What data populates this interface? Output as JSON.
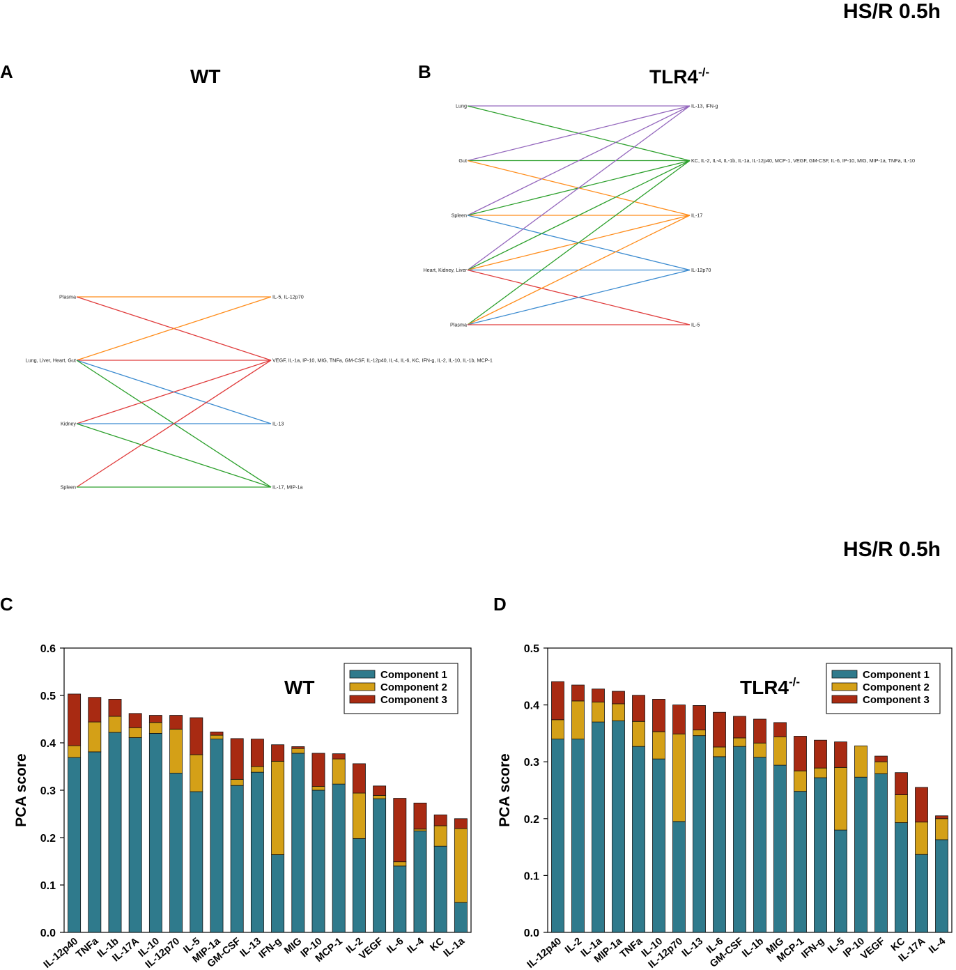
{
  "headers": {
    "top": "HS/R  0.5h",
    "bottom": "HS/R 0.5h"
  },
  "panels": {
    "a": {
      "letter": "A",
      "title": "WT"
    },
    "b": {
      "letter": "B",
      "title_main": "TLR4",
      "title_sup": "-/-"
    },
    "c": {
      "letter": "C"
    },
    "d": {
      "letter": "D"
    }
  },
  "colors": {
    "component1": "#2f7a8c",
    "component2": "#d4a017",
    "component3": "#a82a12",
    "net_orange": "#ff8c1a",
    "net_red": "#e03c3c",
    "net_blue": "#3b8bd0",
    "net_green": "#2ca02c",
    "net_purple": "#9467bd"
  },
  "chart_data": [
    {
      "type": "network",
      "panel": "A",
      "title": "WT",
      "left_nodes": [
        "Plasma",
        "Lung, Liver, Heart, Gut",
        "Kidney",
        "Spleen"
      ],
      "right_nodes": [
        "IL-5, IL-12p70",
        "VEGF, IL-1a, IP-10, MIG, TNFa, GM-CSF, IL-12p40, IL-4, IL-6, KC, IFN-g, IL-2, IL-10, IL-1b, MCP-1",
        "IL-13",
        "IL-17, MIP-1a"
      ],
      "edges": [
        {
          "from": 0,
          "to": 0,
          "color": "net_orange"
        },
        {
          "from": 0,
          "to": 1,
          "color": "net_red"
        },
        {
          "from": 1,
          "to": 0,
          "color": "net_orange"
        },
        {
          "from": 1,
          "to": 1,
          "color": "net_red"
        },
        {
          "from": 1,
          "to": 2,
          "color": "net_blue"
        },
        {
          "from": 1,
          "to": 3,
          "color": "net_green"
        },
        {
          "from": 2,
          "to": 1,
          "color": "net_red"
        },
        {
          "from": 2,
          "to": 2,
          "color": "net_blue"
        },
        {
          "from": 2,
          "to": 3,
          "color": "net_green"
        },
        {
          "from": 3,
          "to": 1,
          "color": "net_red"
        },
        {
          "from": 3,
          "to": 3,
          "color": "net_green"
        }
      ]
    },
    {
      "type": "network",
      "panel": "B",
      "title": "TLR4-/-",
      "left_nodes": [
        "Lung",
        "Gut",
        "Spleen",
        "Heart, Kidney, Liver",
        "Plasma"
      ],
      "right_nodes": [
        "IL-13, IFN-g",
        "KC, IL-2, IL-4, IL-1b, IL-1a, IL-12p40, MCP-1, VEGF, GM-CSF, IL-6, IP-10, MIG, MIP-1a, TNFa, IL-10",
        "IL-17",
        "IL-12p70",
        "IL-5"
      ],
      "edges": [
        {
          "from": 0,
          "to": 0,
          "color": "net_purple"
        },
        {
          "from": 0,
          "to": 1,
          "color": "net_green"
        },
        {
          "from": 1,
          "to": 0,
          "color": "net_purple"
        },
        {
          "from": 1,
          "to": 1,
          "color": "net_green"
        },
        {
          "from": 1,
          "to": 2,
          "color": "net_orange"
        },
        {
          "from": 2,
          "to": 0,
          "color": "net_purple"
        },
        {
          "from": 2,
          "to": 1,
          "color": "net_green"
        },
        {
          "from": 2,
          "to": 2,
          "color": "net_orange"
        },
        {
          "from": 2,
          "to": 3,
          "color": "net_blue"
        },
        {
          "from": 3,
          "to": 0,
          "color": "net_purple"
        },
        {
          "from": 3,
          "to": 1,
          "color": "net_green"
        },
        {
          "from": 3,
          "to": 2,
          "color": "net_orange"
        },
        {
          "from": 3,
          "to": 3,
          "color": "net_blue"
        },
        {
          "from": 3,
          "to": 4,
          "color": "net_red"
        },
        {
          "from": 4,
          "to": 1,
          "color": "net_green"
        },
        {
          "from": 4,
          "to": 2,
          "color": "net_orange"
        },
        {
          "from": 4,
          "to": 3,
          "color": "net_blue"
        },
        {
          "from": 4,
          "to": 4,
          "color": "net_red"
        }
      ]
    },
    {
      "type": "bar",
      "stacked": true,
      "panel": "C",
      "title": "WT",
      "ylabel": "PCA score",
      "ylim": [
        0,
        0.6
      ],
      "yticks": [
        "0.0",
        "0.1",
        "0.2",
        "0.3",
        "0.4",
        "0.5",
        "0.6"
      ],
      "categories": [
        "IL-12p40",
        "TNFa",
        "IL-1b",
        "IL-17A",
        "IL-10",
        "IL-12p70",
        "IL-5",
        "MIP-1a",
        "GM-CSF",
        "IL-13",
        "IFN-g",
        "MIG",
        "IP-10",
        "MCP-1",
        "IL-2",
        "VEGF",
        "IL-6",
        "IL-4",
        "KC",
        "IL-1a"
      ],
      "series": [
        {
          "name": "Component 1",
          "values": [
            0.369,
            0.381,
            0.422,
            0.411,
            0.42,
            0.336,
            0.297,
            0.408,
            0.31,
            0.338,
            0.164,
            0.378,
            0.3,
            0.313,
            0.198,
            0.282,
            0.14,
            0.214,
            0.182,
            0.063
          ]
        },
        {
          "name": "Component 2",
          "values": [
            0.025,
            0.063,
            0.034,
            0.021,
            0.023,
            0.093,
            0.078,
            0.008,
            0.013,
            0.012,
            0.197,
            0.01,
            0.008,
            0.053,
            0.096,
            0.007,
            0.009,
            0.004,
            0.043,
            0.156
          ]
        },
        {
          "name": "Component 3",
          "values": [
            0.109,
            0.052,
            0.036,
            0.03,
            0.015,
            0.029,
            0.078,
            0.007,
            0.086,
            0.058,
            0.035,
            0.004,
            0.07,
            0.011,
            0.062,
            0.02,
            0.134,
            0.055,
            0.023,
            0.021
          ]
        }
      ],
      "legend": [
        "Component 1",
        "Component 2",
        "Component 3"
      ],
      "legend_position": "top-right"
    },
    {
      "type": "bar",
      "stacked": true,
      "panel": "D",
      "title": "TLR4-/-",
      "ylabel": "PCA score",
      "ylim": [
        0,
        0.5
      ],
      "yticks": [
        "0.0",
        "0.1",
        "0.2",
        "0.3",
        "0.4",
        "0.5"
      ],
      "categories": [
        "IL-12p40",
        "IL-2",
        "IL-1a",
        "MIP-1a",
        "TNFa",
        "IL-10",
        "IL-12p70",
        "IL-13",
        "IL-6",
        "GM-CSF",
        "IL-1b",
        "MIG",
        "MCP-1",
        "IFN-g",
        "IL-5",
        "IP-10",
        "VEGF",
        "KC",
        "IL-17A",
        "IL-4"
      ],
      "series": [
        {
          "name": "Component 1",
          "values": [
            0.34,
            0.34,
            0.37,
            0.372,
            0.327,
            0.305,
            0.195,
            0.346,
            0.309,
            0.327,
            0.308,
            0.294,
            0.248,
            0.272,
            0.18,
            0.273,
            0.279,
            0.193,
            0.137,
            0.163
          ]
        },
        {
          "name": "Component 2",
          "values": [
            0.034,
            0.067,
            0.035,
            0.03,
            0.044,
            0.048,
            0.154,
            0.01,
            0.017,
            0.015,
            0.025,
            0.05,
            0.036,
            0.017,
            0.11,
            0.055,
            0.021,
            0.049,
            0.057,
            0.037
          ]
        },
        {
          "name": "Component 3",
          "values": [
            0.067,
            0.028,
            0.023,
            0.022,
            0.046,
            0.057,
            0.051,
            0.043,
            0.061,
            0.038,
            0.042,
            0.025,
            0.061,
            0.049,
            0.045,
            0.0,
            0.01,
            0.039,
            0.061,
            0.005
          ]
        }
      ],
      "legend": [
        "Component 1",
        "Component 2",
        "Component 3"
      ],
      "legend_position": "top-right"
    }
  ]
}
